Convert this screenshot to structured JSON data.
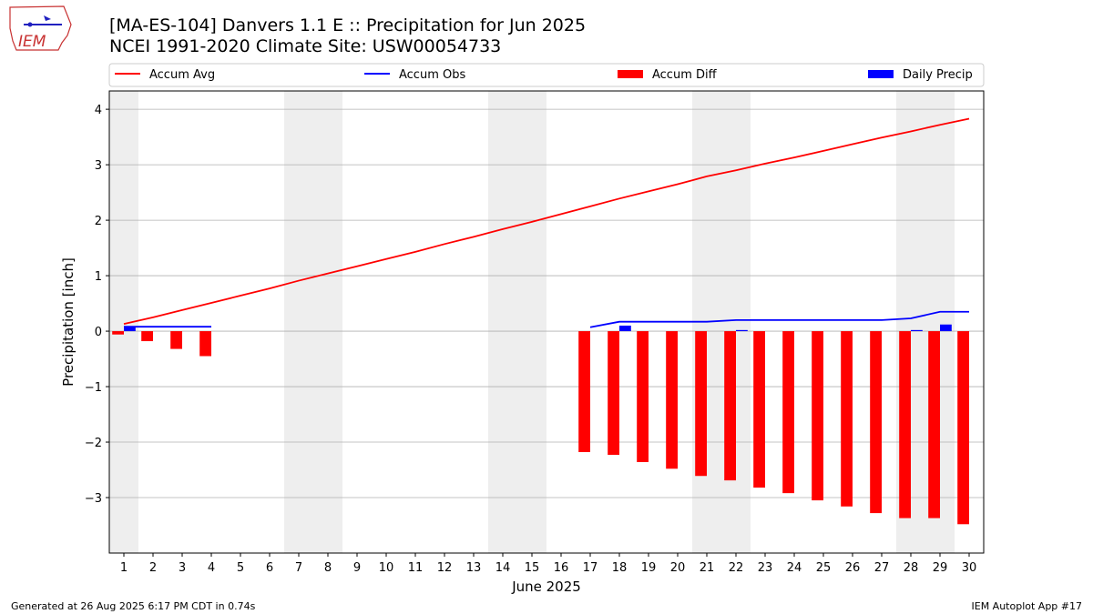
{
  "title_line1": "[MA-ES-104] Danvers 1.1 E :: Precipitation for Jun 2025",
  "title_line2": "NCEI 1991-2020 Climate Site: USW00054733",
  "logo_text": "IEM",
  "footer_left": "Generated at 26 Aug 2025 6:17 PM CDT in 0.74s",
  "footer_right": "IEM Autoplot App #17",
  "colors": {
    "avg": "#ff0000",
    "obs": "#0000ff",
    "diff": "#ff0000",
    "daily": "#0000ff",
    "weekend": "#eeeeee",
    "grid": "#b0b0b0"
  },
  "chart_data": {
    "type": "bar",
    "xlabel": "June 2025",
    "ylabel": "Precipitation [inch]",
    "xlim": [
      0.5,
      30.5
    ],
    "ylim": [
      -4.0,
      4.33
    ],
    "grid": true,
    "legend_position": "top",
    "x_ticks": [
      1,
      2,
      3,
      4,
      5,
      6,
      7,
      8,
      9,
      10,
      11,
      12,
      13,
      14,
      15,
      16,
      17,
      18,
      19,
      20,
      21,
      22,
      23,
      24,
      25,
      26,
      27,
      28,
      29,
      30
    ],
    "y_ticks": [
      -3,
      -2,
      -1,
      0,
      1,
      2,
      3,
      4
    ],
    "y_tick_labels": [
      "−3",
      "−2",
      "−1",
      "0",
      "1",
      "2",
      "3",
      "4"
    ],
    "weekend_days": [
      1,
      7,
      8,
      14,
      15,
      21,
      22,
      28,
      29
    ],
    "series": [
      {
        "name": "Accum Avg",
        "kind": "line",
        "x": [
          1,
          2,
          3,
          4,
          5,
          6,
          7,
          8,
          9,
          10,
          11,
          12,
          13,
          14,
          15,
          16,
          17,
          18,
          19,
          20,
          21,
          22,
          23,
          24,
          25,
          26,
          27,
          28,
          29,
          30
        ],
        "values": [
          0.13,
          0.25,
          0.38,
          0.51,
          0.64,
          0.77,
          0.91,
          1.04,
          1.17,
          1.3,
          1.43,
          1.57,
          1.7,
          1.84,
          1.97,
          2.11,
          2.25,
          2.39,
          2.52,
          2.65,
          2.79,
          2.9,
          3.02,
          3.13,
          3.25,
          3.37,
          3.49,
          3.6,
          3.72,
          3.83
        ]
      },
      {
        "name": "Accum Obs",
        "kind": "line",
        "segments": [
          {
            "x": [
              1,
              2,
              3,
              4
            ],
            "values": [
              0.08,
              0.08,
              0.08,
              0.08
            ]
          },
          {
            "x": [
              17,
              18,
              19,
              20,
              21,
              22,
              23,
              24,
              25,
              26,
              27,
              28,
              29,
              30
            ],
            "values": [
              0.07,
              0.17,
              0.17,
              0.17,
              0.17,
              0.2,
              0.2,
              0.2,
              0.2,
              0.2,
              0.2,
              0.23,
              0.35,
              0.35
            ]
          }
        ]
      },
      {
        "name": "Accum Diff",
        "kind": "bar",
        "x": [
          1,
          2,
          3,
          4,
          17,
          18,
          19,
          20,
          21,
          22,
          23,
          24,
          25,
          26,
          27,
          28,
          29,
          30
        ],
        "values": [
          -0.06,
          -0.18,
          -0.32,
          -0.45,
          -2.18,
          -2.23,
          -2.36,
          -2.48,
          -2.61,
          -2.69,
          -2.82,
          -2.92,
          -3.05,
          -3.16,
          -3.28,
          -3.37,
          -3.37,
          -3.48
        ]
      },
      {
        "name": "Daily Precip",
        "kind": "bar",
        "x": [
          1,
          18,
          22,
          28,
          29
        ],
        "values": [
          0.08,
          0.1,
          0.02,
          0.02,
          0.12
        ]
      }
    ]
  }
}
